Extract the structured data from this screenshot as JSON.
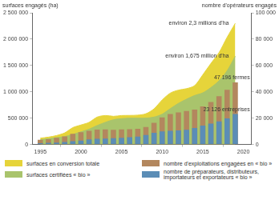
{
  "chart_data": {
    "type": "bar",
    "y_label": "surfaces engagés (ha)",
    "y2_label": "nombre d'opérateurs engagés",
    "x": [
      1995,
      1996,
      1997,
      1998,
      1999,
      2000,
      2001,
      2002,
      2003,
      2004,
      2005,
      2006,
      2007,
      2008,
      2009,
      2010,
      2011,
      2012,
      2013,
      2014,
      2015,
      2016,
      2017,
      2018,
      2019
    ],
    "series": [
      {
        "name": "surfaces en conversion totale",
        "type": "line",
        "axis": "y",
        "color": "#e6d43a",
        "values": [
          120000,
          140000,
          170000,
          220000,
          320000,
          370000,
          420000,
          520000,
          550000,
          535000,
          550000,
          552000,
          557000,
          584000,
          677000,
          845000,
          975000,
          1032000,
          1060000,
          1118000,
          1322000,
          1538000,
          1744000,
          2035000,
          2300000
        ]
      },
      {
        "name": "surfaces certifiées « bio »",
        "type": "line",
        "axis": "y",
        "color": "#a9c46c",
        "values": [
          90000,
          110000,
          130000,
          150000,
          190000,
          240000,
          290000,
          360000,
          420000,
          470000,
          490000,
          500000,
          500000,
          500000,
          520000,
          575000,
          680000,
          780000,
          860000,
          930000,
          980000,
          1080000,
          1210000,
          1400000,
          1675000
        ]
      },
      {
        "name": "nombre d'exploitations engagées en « bio »",
        "type": "bar",
        "axis": "y2",
        "color": "#b3875e",
        "values": [
          3600,
          4000,
          5000,
          6100,
          8100,
          9300,
          10400,
          11300,
          11400,
          11100,
          11400,
          11600,
          11900,
          13300,
          16400,
          20600,
          23100,
          24400,
          25500,
          26500,
          28900,
          32300,
          36700,
          41600,
          47196
        ]
      },
      {
        "name": "nombre de préparateurs, distributeurs, importateurs et exportateurs « bio »",
        "type": "bar",
        "axis": "y2",
        "color": "#5b8db6",
        "values": [
          1000,
          1200,
          1500,
          1900,
          2500,
          3000,
          3800,
          4300,
          4500,
          4700,
          5000,
          5500,
          6000,
          7200,
          8800,
          9900,
          10400,
          10700,
          11200,
          12500,
          14300,
          15800,
          17500,
          19800,
          23126
        ]
      }
    ],
    "xlim": [
      1994,
      2021
    ],
    "xticks": [
      1995,
      2000,
      2005,
      2010,
      2015,
      2020
    ],
    "ylim": [
      0,
      2500000
    ],
    "yticks": [
      0,
      {
        "value": 500000,
        "label": "500 000"
      },
      {
        "value": 1000000,
        "label": "1 000 000"
      },
      {
        "value": 1500000,
        "label": "1 500 000"
      },
      {
        "value": 2000000,
        "label": "2 000 000"
      },
      {
        "value": 2500000,
        "label": "2 500 000"
      }
    ],
    "y2lim": [
      0,
      100000
    ],
    "y2ticks": [
      0,
      {
        "value": 20000,
        "label": "20 000"
      },
      {
        "value": 40000,
        "label": "40 000"
      },
      {
        "value": 60000,
        "label": "60 000"
      },
      {
        "value": 80000,
        "label": "80 000"
      },
      {
        "value": 100000,
        "label": "100 000"
      }
    ],
    "annotations": [
      {
        "text": "environ 2,3 millions d'ha",
        "x": 2019,
        "y": 2300000,
        "axis": "y"
      },
      {
        "text": "environ 1,675 million d'ha",
        "x": 2019,
        "y": 1675000,
        "axis": "y"
      },
      {
        "text": "47 196 fermes",
        "x": 2019,
        "y": 47196,
        "axis": "y2"
      },
      {
        "text": "23 126 entreprises",
        "x": 2019,
        "y": 23126,
        "axis": "y2"
      }
    ],
    "grid": false
  }
}
